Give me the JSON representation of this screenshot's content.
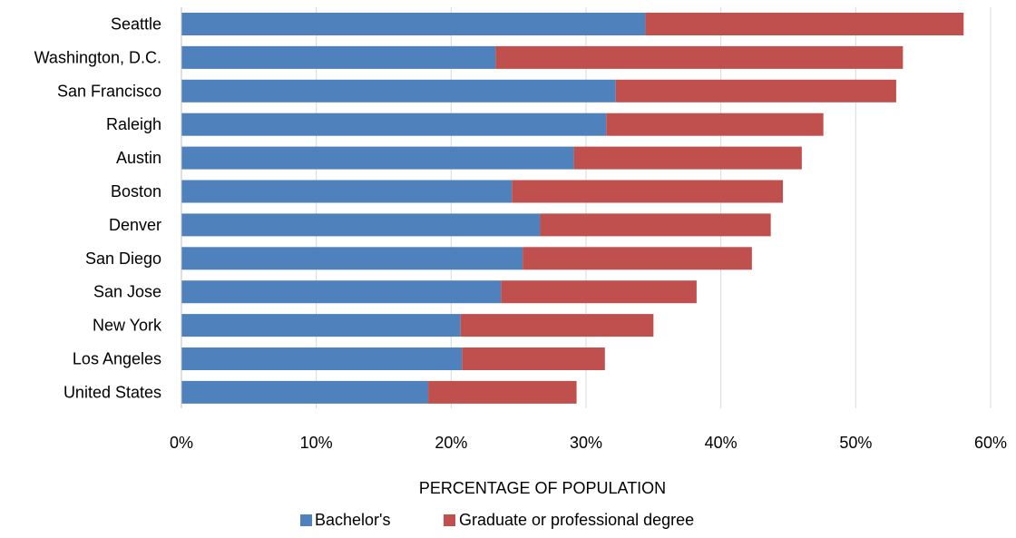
{
  "chart_data": {
    "type": "bar",
    "orientation": "horizontal",
    "stacked": true,
    "categories": [
      "Seattle",
      "Washington, D.C.",
      "San Francisco",
      "Raleigh",
      "Austin",
      "Boston",
      "Denver",
      "San Diego",
      "San Jose",
      "New York",
      "Los Angeles",
      "United States"
    ],
    "series": [
      {
        "name": "Bachelor's",
        "color": "#4f81bd",
        "values": [
          34.4,
          23.3,
          32.2,
          31.5,
          29.1,
          24.5,
          26.6,
          25.3,
          23.7,
          20.7,
          20.8,
          18.3
        ]
      },
      {
        "name": "Graduate or professional degree",
        "color": "#c0504d",
        "values": [
          23.6,
          30.2,
          20.8,
          16.1,
          16.9,
          20.1,
          17.1,
          17.0,
          14.5,
          14.3,
          10.6,
          11.0
        ]
      }
    ],
    "xlim": [
      0,
      60
    ],
    "x_ticks": [
      0,
      10,
      20,
      30,
      40,
      50,
      60
    ],
    "x_tick_labels": [
      "0%",
      "10%",
      "20%",
      "30%",
      "40%",
      "50%",
      "60%"
    ],
    "xlabel": "PERCENTAGE OF POPULATION",
    "ylabel": "",
    "title": "",
    "grid": "vertical",
    "legend_position": "bottom"
  }
}
